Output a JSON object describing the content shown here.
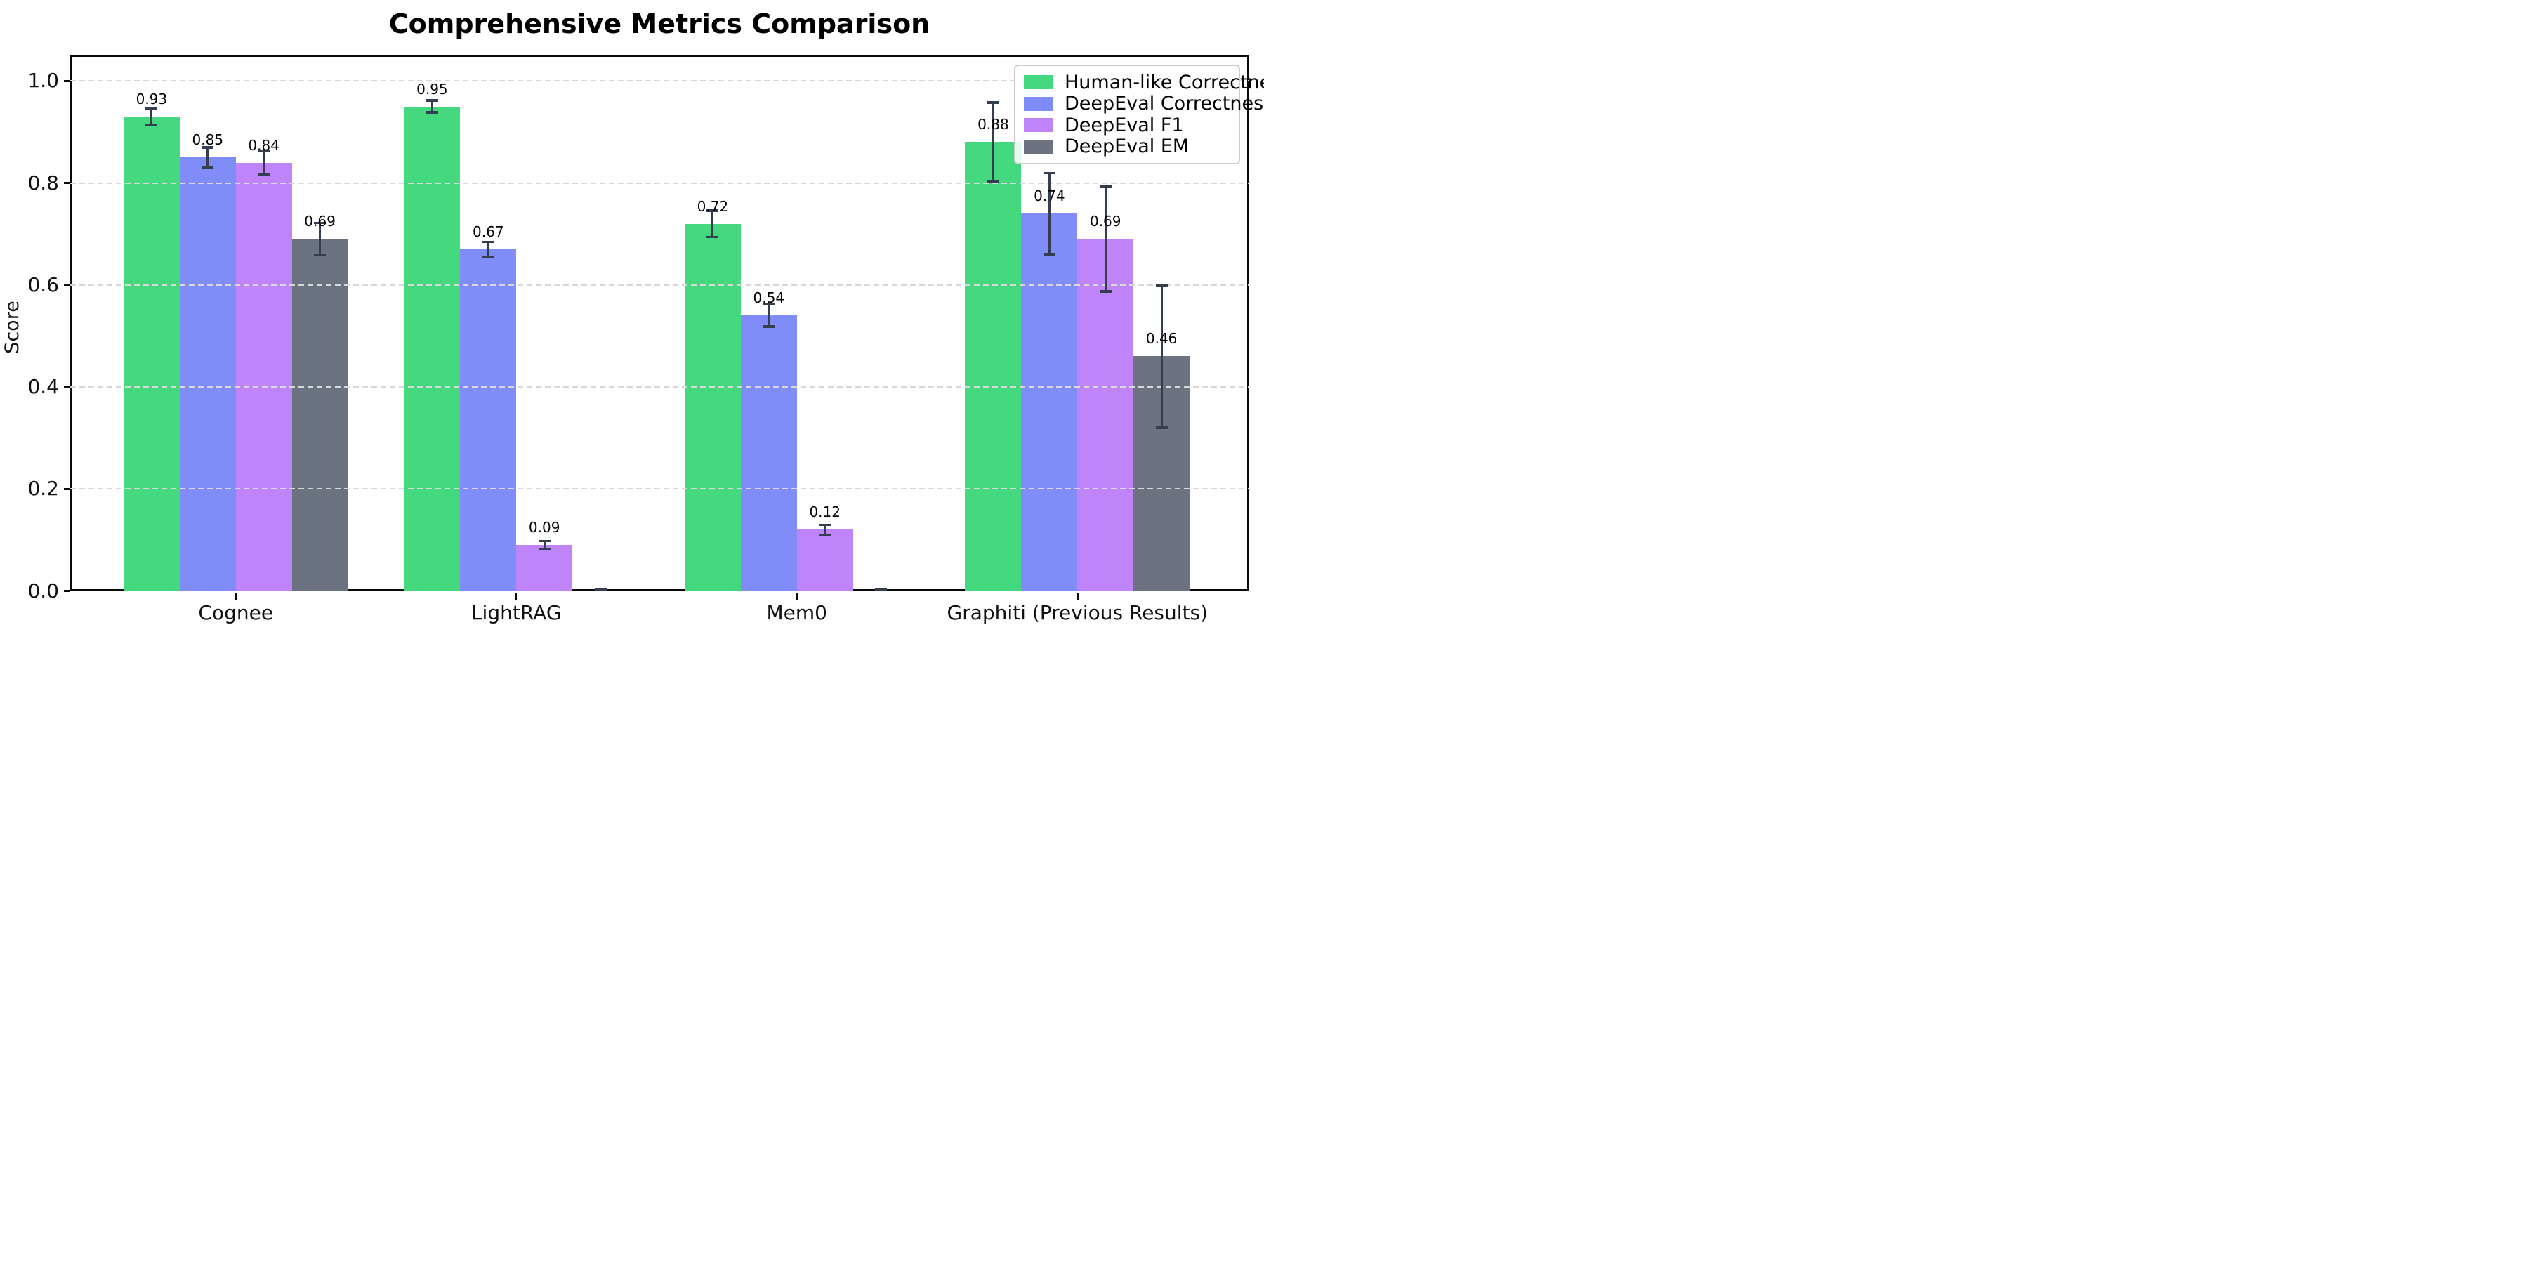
{
  "figure": {
    "background": "#ffffff"
  },
  "chart_data": {
    "type": "bar",
    "title": "Comprehensive Metrics Comparison",
    "xlabel": "",
    "ylabel": "Score",
    "categories": [
      "Cognee",
      "LightRAG",
      "Mem0",
      "Graphiti (Previous Results)"
    ],
    "series": [
      {
        "name": "Human-like Correctness",
        "color": "#44d97f",
        "values": [
          0.93,
          0.95,
          0.72,
          0.88
        ],
        "errors": [
          0.016,
          0.012,
          0.026,
          0.078
        ],
        "bar_labels": [
          "0.93",
          "0.95",
          "0.72",
          "0.88"
        ]
      },
      {
        "name": "DeepEval Correctness",
        "color": "#808cf7",
        "values": [
          0.85,
          0.67,
          0.54,
          0.74
        ],
        "errors": [
          0.02,
          0.015,
          0.022,
          0.08
        ],
        "bar_labels": [
          "0.85",
          "0.67",
          "0.54",
          "0.74"
        ]
      },
      {
        "name": "DeepEval F1",
        "color": "#bf83fa",
        "values": [
          0.84,
          0.09,
          0.12,
          0.69
        ],
        "errors": [
          0.024,
          0.008,
          0.01,
          0.103
        ],
        "bar_labels": [
          "0.84",
          "0.09",
          "0.12",
          "0.69"
        ]
      },
      {
        "name": "DeepEval EM",
        "color": "#6b7280",
        "values": [
          0.69,
          0.0,
          0.0,
          0.46
        ],
        "errors": [
          0.032,
          0.003,
          0.003,
          0.14
        ],
        "bar_labels": [
          "0.69",
          "",
          "",
          "0.46"
        ]
      }
    ],
    "axes": {
      "ylim": [
        0,
        1.05
      ],
      "xlim": [
        -0.59,
        3.61
      ],
      "yticks": [
        0.0,
        0.2,
        0.4,
        0.6,
        0.8,
        1.0
      ],
      "ytick_labels": [
        "0.0",
        "0.2",
        "0.4",
        "0.6",
        "0.8",
        "1.0"
      ],
      "grid": "dashed-horizontal",
      "grid_color": "#d8d8d8"
    },
    "legend": {
      "position": "upper-right",
      "border_color": "#cccccc",
      "background": "#ffffff"
    },
    "error_bar_color": "#333f50",
    "bar_width_units": 0.2,
    "group_spacing_units": 1.0
  }
}
